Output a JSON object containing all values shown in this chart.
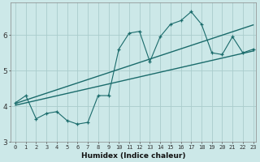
{
  "xlabel": "Humidex (Indice chaleur)",
  "bg_color": "#cce8e8",
  "grid_color": "#aacccc",
  "line_color": "#1a6b6b",
  "x_data": [
    0,
    1,
    2,
    3,
    4,
    5,
    6,
    7,
    8,
    9,
    10,
    11,
    12,
    13,
    14,
    15,
    16,
    17,
    18,
    19,
    20,
    21,
    22,
    23
  ],
  "y_data": [
    4.1,
    4.3,
    3.65,
    3.8,
    3.85,
    3.6,
    3.5,
    3.55,
    4.3,
    4.3,
    5.6,
    6.05,
    6.1,
    5.25,
    5.95,
    6.3,
    6.4,
    6.65,
    6.3,
    5.5,
    5.45,
    5.95,
    5.5,
    5.6
  ],
  "line1_start": 4.08,
  "line1_end": 6.28,
  "line2_start": 4.03,
  "line2_end": 5.55,
  "ylim": [
    3.0,
    6.9
  ],
  "xlim": [
    -0.5,
    23.3
  ],
  "yticks": [
    3,
    4,
    5,
    6
  ],
  "xticks": [
    0,
    1,
    2,
    3,
    4,
    5,
    6,
    7,
    8,
    9,
    10,
    11,
    12,
    13,
    14,
    15,
    16,
    17,
    18,
    19,
    20,
    21,
    22,
    23
  ]
}
